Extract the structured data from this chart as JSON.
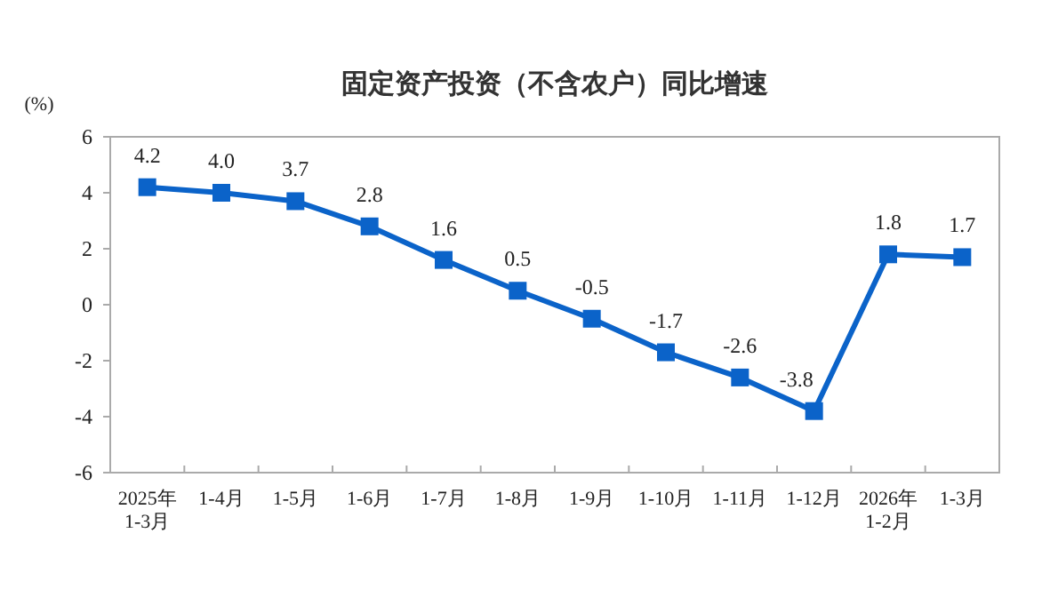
{
  "chart_data": {
    "type": "line",
    "title": "固定资产投资（不含农户）同比增速",
    "ylabel": "(%)",
    "categories": [
      "2025年\n1-3月",
      "1-4月",
      "1-5月",
      "1-6月",
      "1-7月",
      "1-8月",
      "1-9月",
      "1-10月",
      "1-11月",
      "1-12月",
      "2026年\n1-2月",
      "1-3月"
    ],
    "series": [
      {
        "color": "#0b63c9",
        "values": [
          4.2,
          4.0,
          3.7,
          2.8,
          1.6,
          0.5,
          -0.5,
          -1.7,
          -2.6,
          -3.8,
          1.8,
          1.7
        ]
      }
    ],
    "value_labels": [
      "4.2",
      "4.0",
      "3.7",
      "2.8",
      "1.6",
      "0.5",
      "-0.5",
      "-1.7",
      "-2.6",
      "-3.8",
      "1.8",
      "1.7"
    ],
    "ylim": [
      -6,
      6
    ],
    "yticks": [
      -6,
      -4,
      -2,
      0,
      2,
      4,
      6
    ],
    "grid": false,
    "marker": "square",
    "line_style": "solid"
  }
}
